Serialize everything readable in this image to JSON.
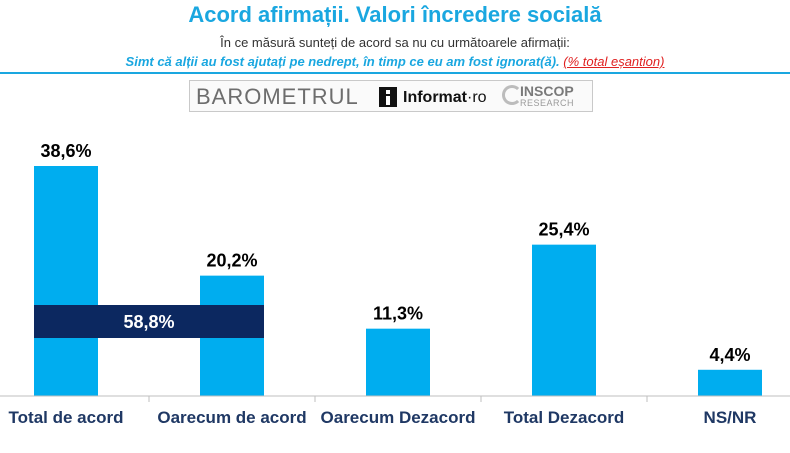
{
  "header": {
    "title": "Acord afirmații. Valori încredere socială",
    "subtitle": "În ce măsură sunteți de acord sa nu cu următoarele afirmații:",
    "statement": "Simt că alții au fost ajutați pe nedrept, în timp ce eu am fost ignorat(ă).",
    "note": "(% total eșantion)"
  },
  "logo": {
    "barometrul": "BAROMETRUL",
    "informat": "Informat",
    "ro": "·ro",
    "inscop": "INSCOP",
    "research": "RESEARCH"
  },
  "chart_data": {
    "type": "bar",
    "categories": [
      "Total de acord",
      "Oarecum de acord",
      "Oarecum Dezacord",
      "Total Dezacord",
      "NS/NR"
    ],
    "values": [
      38.6,
      20.2,
      11.3,
      25.4,
      4.4
    ],
    "value_labels": [
      "38,6%",
      "20,2%",
      "11,3%",
      "25,4%",
      "4,4%"
    ],
    "aggregate": {
      "label": "58,8%",
      "spans": [
        "Total de acord",
        "Oarecum de acord"
      ]
    },
    "colors": {
      "bar": "#00adef",
      "aggregate": "#0c2860",
      "category_text": "#1f3864"
    }
  }
}
